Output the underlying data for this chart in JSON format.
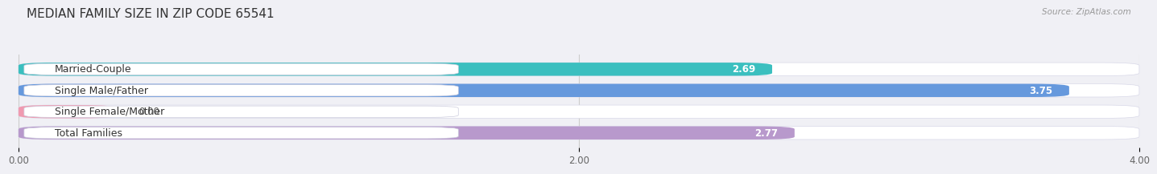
{
  "title": "MEDIAN FAMILY SIZE IN ZIP CODE 65541",
  "source": "Source: ZipAtlas.com",
  "categories": [
    "Married-Couple",
    "Single Male/Father",
    "Single Female/Mother",
    "Total Families"
  ],
  "values": [
    2.69,
    3.75,
    0.0,
    2.77
  ],
  "bar_colors": [
    "#3bbfbf",
    "#6699dd",
    "#f09ab0",
    "#b899cc"
  ],
  "xlim": [
    0,
    4.0
  ],
  "xticks": [
    0.0,
    2.0,
    4.0
  ],
  "xtick_labels": [
    "0.00",
    "2.00",
    "4.00"
  ],
  "background_color": "#f0f0f5",
  "bar_bg_color": "#e8e8f0",
  "title_fontsize": 11,
  "label_fontsize": 9,
  "value_fontsize": 8.5,
  "bar_height": 0.62,
  "fig_width": 14.06,
  "fig_height": 2.33,
  "value_label_outside": [
    false,
    false,
    true,
    false
  ]
}
